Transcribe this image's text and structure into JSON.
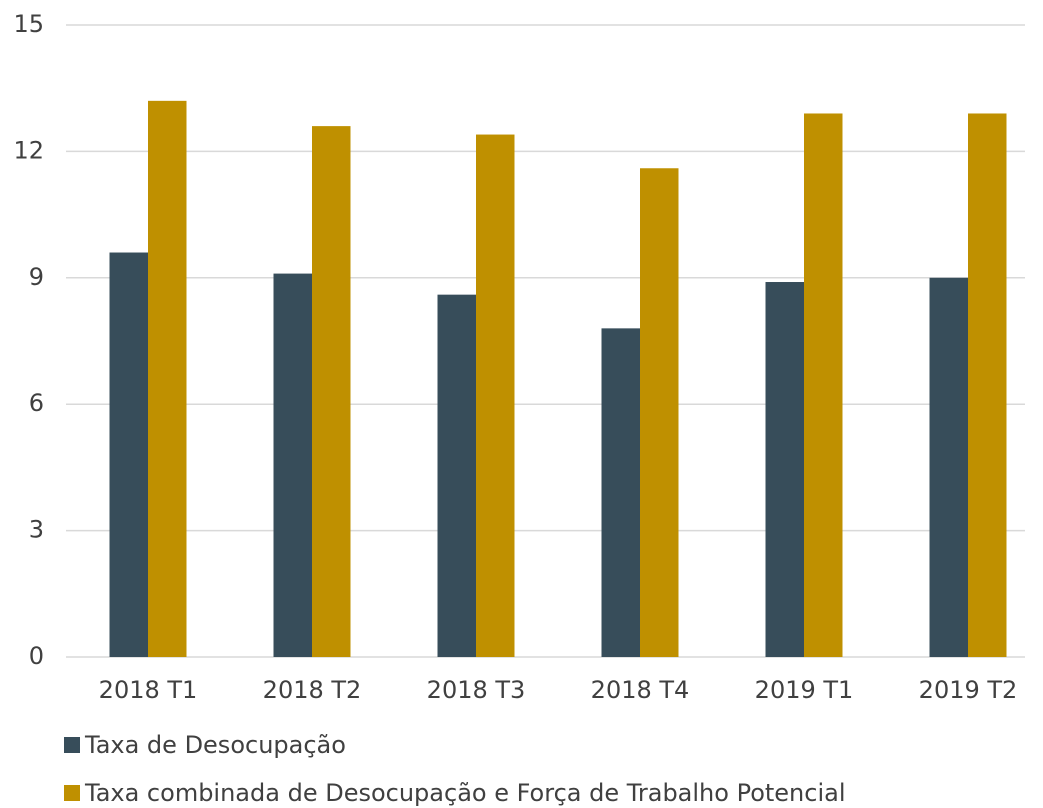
{
  "chart_data": {
    "type": "bar",
    "categories": [
      "2018 T1",
      "2018 T2",
      "2018 T3",
      "2018 T4",
      "2019 T1",
      "2019 T2"
    ],
    "series": [
      {
        "name": "Taxa de Desocupação",
        "color": "#374d5a",
        "values": [
          9.6,
          9.1,
          8.6,
          7.8,
          8.9,
          9.0
        ]
      },
      {
        "name": "Taxa combinada de Desocupação e Força de Trabalho Potencial",
        "color": "#bf9000",
        "values": [
          13.2,
          12.6,
          12.4,
          11.6,
          12.9,
          12.9
        ]
      }
    ],
    "ylim": [
      0,
      15
    ],
    "yticks": [
      0,
      3,
      6,
      9,
      12,
      15
    ],
    "grid": true,
    "legend": "bottom"
  }
}
